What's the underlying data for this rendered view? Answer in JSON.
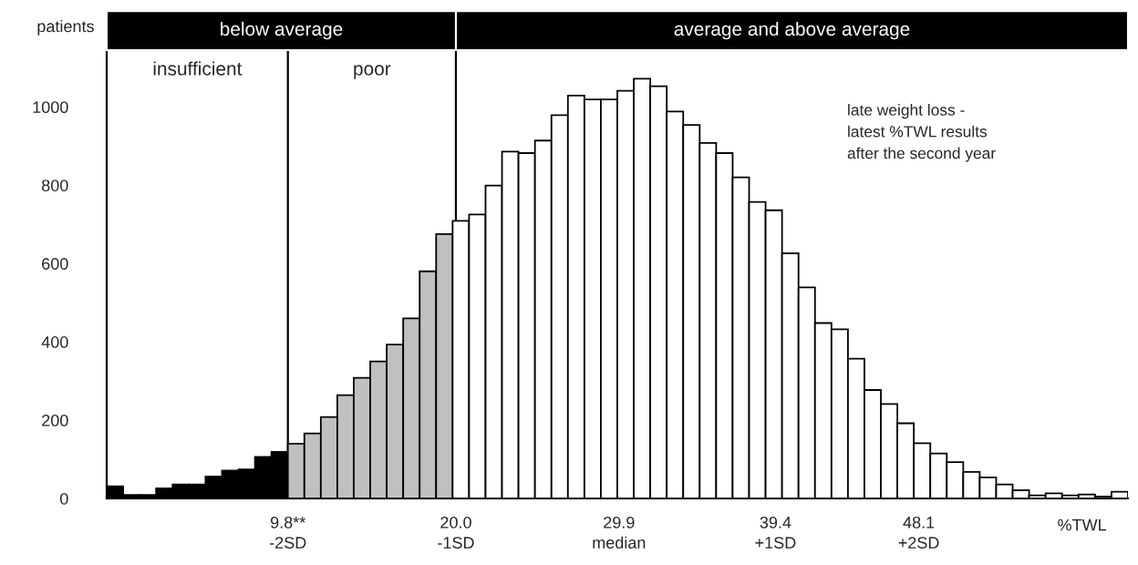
{
  "chart_data": {
    "type": "histogram",
    "xlabel": "%TWL",
    "ylabel": "patients",
    "bins": [
      -1.2,
      -0.2,
      0.8,
      1.8,
      2.8,
      3.8,
      4.8,
      5.8,
      6.8,
      7.8,
      8.8,
      9.8,
      10.8,
      11.8,
      12.8,
      13.8,
      14.8,
      15.8,
      16.8,
      17.8,
      18.8,
      19.8,
      20.8,
      21.8,
      22.8,
      23.8,
      24.8,
      25.8,
      26.8,
      27.8,
      28.8,
      29.8,
      30.8,
      31.8,
      32.8,
      33.8,
      34.8,
      35.8,
      36.8,
      37.8,
      38.8,
      39.8,
      40.8,
      41.8,
      42.8,
      43.8,
      44.8,
      45.8,
      46.8,
      47.8,
      48.8,
      49.8,
      50.8,
      51.8,
      52.8,
      53.8,
      54.8,
      55.8,
      56.8,
      57.8,
      58.8,
      59.8,
      60.8
    ],
    "values": [
      31,
      9,
      9,
      26,
      36,
      36,
      56,
      71,
      74,
      106,
      119,
      140,
      166,
      208,
      264,
      308,
      350,
      393,
      460,
      580,
      675,
      709,
      725,
      799,
      886,
      882,
      914,
      979,
      1029,
      1019,
      1019,
      1041,
      1072,
      1053,
      988,
      954,
      908,
      882,
      820,
      757,
      736,
      626,
      539,
      448,
      432,
      357,
      277,
      241,
      192,
      141,
      115,
      93,
      68,
      54,
      36,
      21,
      8,
      13,
      8,
      10,
      5,
      17
    ],
    "colors": [
      "#000000",
      "#000000",
      "#000000",
      "#000000",
      "#000000",
      "#000000",
      "#000000",
      "#000000",
      "#000000",
      "#000000",
      "#000000",
      "#c0c0c0",
      "#c0c0c0",
      "#c0c0c0",
      "#c0c0c0",
      "#c0c0c0",
      "#c0c0c0",
      "#c0c0c0",
      "#c0c0c0",
      "#c0c0c0",
      "#c0c0c0",
      "#ffffff",
      "#ffffff",
      "#ffffff",
      "#ffffff",
      "#ffffff",
      "#ffffff",
      "#ffffff",
      "#ffffff",
      "#ffffff",
      "#ffffff",
      "#ffffff",
      "#ffffff",
      "#ffffff",
      "#ffffff",
      "#ffffff",
      "#ffffff",
      "#ffffff",
      "#ffffff",
      "#ffffff",
      "#ffffff",
      "#ffffff",
      "#ffffff",
      "#ffffff",
      "#ffffff",
      "#ffffff",
      "#ffffff",
      "#ffffff",
      "#ffffff",
      "#ffffff",
      "#ffffff",
      "#ffffff",
      "#ffffff",
      "#ffffff",
      "#ffffff",
      "#ffffff",
      "#ffffff",
      "#ffffff",
      "#ffffff",
      "#ffffff",
      "#ffffff",
      "#ffffff"
    ],
    "xlim": [
      -1.2,
      60.8
    ],
    "ylim": [
      0,
      1145
    ],
    "xticks": [
      {
        "value": 9.8,
        "label": "9.8**"
      },
      {
        "value": 20.0,
        "label": "20.0"
      },
      29.9,
      39.4,
      48.1
    ],
    "yticks": [
      0,
      200,
      400,
      600,
      800,
      1000
    ],
    "ref_lines": [
      {
        "axis": "x",
        "value": 9.8,
        "color": "#000000"
      },
      {
        "axis": "x",
        "value": 20.0,
        "color": "#000000"
      }
    ],
    "annotations": [
      "below average",
      "average and above average",
      "insufficient",
      "poor",
      "late weight loss -\nlatest %TWL results\nafter the second year",
      "-2SD",
      "-1SD",
      "median",
      "+1SD",
      "+2SD"
    ],
    "grid": false,
    "legend": false
  }
}
